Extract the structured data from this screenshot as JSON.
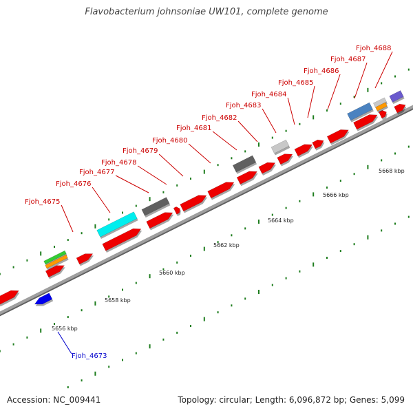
{
  "title": "Flavobacterium johnsoniae UW101, complete genome",
  "footer": {
    "accession": "Accession: NC_009441",
    "summary": "Topology: circular; Length: 6,096,872 bp; Genes: 5,099"
  },
  "colors": {
    "backbone": "#a0a0a0",
    "tick": "#1e7d1e",
    "label_upper": "#cc0000",
    "label_lower": "#0000cc",
    "gene_default": "#ee0000",
    "gene_cyan": "#00eeee",
    "gene_dark_gray": "#606060",
    "gene_light_gray": "#c8c8c8",
    "gene_steel_blue": "#4a82c0",
    "gene_orange": "#ff9900",
    "gene_green": "#33cc33",
    "gene_purple": "#6a5acd",
    "gene_blue": "#0000ee"
  },
  "scale_labels": [
    "5656 kbp",
    "5658 kbp",
    "5660 kbp",
    "5662 kbp",
    "5664 kbp",
    "5666 kbp",
    "5668 kbp"
  ],
  "gene_labels_upper": [
    "Fjoh_4675",
    "Fjoh_4676",
    "Fjoh_4677",
    "Fjoh_4678",
    "Fjoh_4679",
    "Fjoh_4680",
    "Fjoh_4681",
    "Fjoh_4682",
    "Fjoh_4683",
    "Fjoh_4684",
    "Fjoh_4685",
    "Fjoh_4686",
    "Fjoh_4687",
    "Fjoh_4688"
  ],
  "gene_labels_lower": [
    "Fjoh_4673"
  ]
}
